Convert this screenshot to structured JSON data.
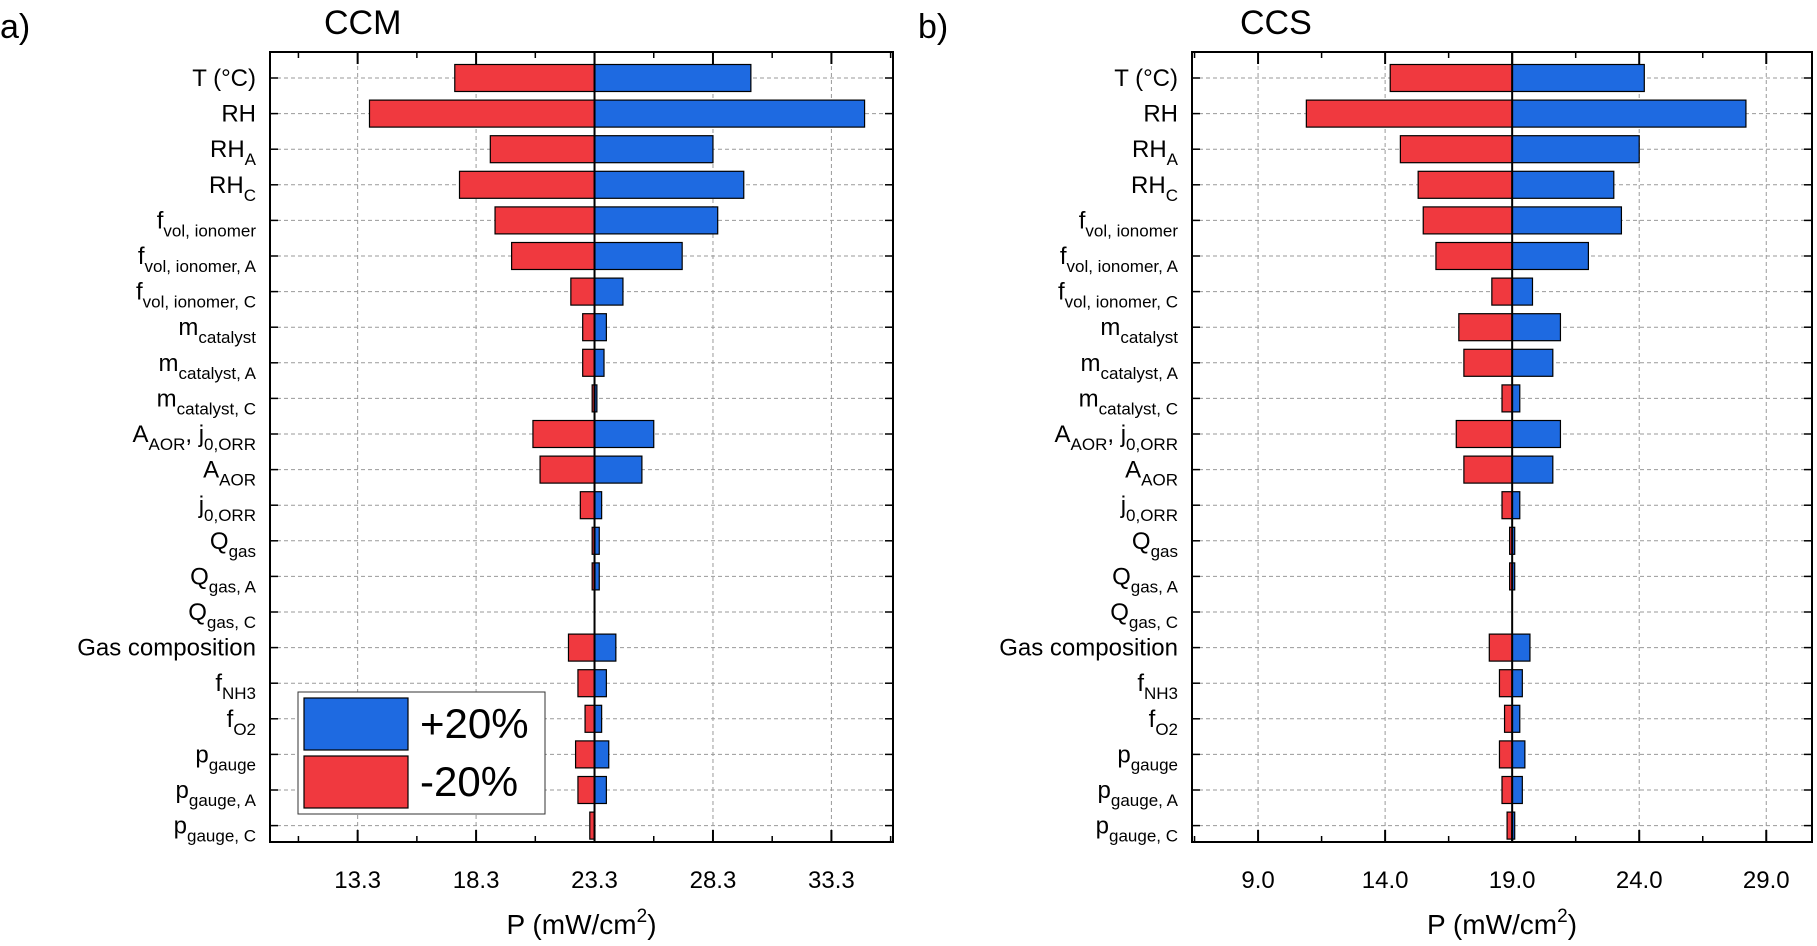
{
  "colors": {
    "increase": "#1e6ae1",
    "decrease": "#f0393f",
    "grid": "#9a9a9a",
    "axis": "#000000"
  },
  "legend": {
    "location": "lower-left of panel a",
    "entries": [
      {
        "label": "+20%",
        "color": "#1e6ae1"
      },
      {
        "label": "-20%",
        "color": "#f0393f"
      }
    ]
  },
  "parameters": [
    {
      "base": "T (°C)"
    },
    {
      "base": "RH"
    },
    {
      "base": "RH",
      "sub": "A"
    },
    {
      "base": "RH",
      "sub": "C"
    },
    {
      "base": "f",
      "sub": "vol, ionomer"
    },
    {
      "base": "f",
      "sub": "vol, ionomer, A"
    },
    {
      "base": "f",
      "sub": "vol, ionomer, C"
    },
    {
      "base": "m",
      "sub": "catalyst"
    },
    {
      "base": "m",
      "sub": "catalyst, A"
    },
    {
      "base": "m",
      "sub": "catalyst, C"
    },
    {
      "base": "A",
      "sub": "AOR",
      "mid": ", j",
      "sub2": "0,ORR"
    },
    {
      "base": "A",
      "sub": "AOR"
    },
    {
      "base": "j",
      "sub": "0,ORR"
    },
    {
      "base": "Q",
      "sub": "gas"
    },
    {
      "base": "Q",
      "sub": "gas, A"
    },
    {
      "base": "Q",
      "sub": "gas, C"
    },
    {
      "base": "Gas composition"
    },
    {
      "base": "f",
      "sub": "NH3"
    },
    {
      "base": "f",
      "sub": "O2"
    },
    {
      "base": "p",
      "sub": "gauge"
    },
    {
      "base": "p",
      "sub": "gauge, A"
    },
    {
      "base": "p",
      "sub": "gauge, C"
    }
  ],
  "chart_data": [
    {
      "type": "bar",
      "orientation": "horizontal tornado",
      "panel_label": "a)",
      "title": "CCM",
      "xlabel": "P (mW/cm",
      "xlabel_sup": "2",
      "xlabel_close": ")",
      "baseline": 23.3,
      "xlim": [
        9.6,
        35.9
      ],
      "xticks": [
        13.3,
        18.3,
        23.3,
        28.3,
        33.3
      ],
      "xtick_labels": [
        "13.3",
        "18.3",
        "23.3",
        "28.3",
        "33.3"
      ],
      "grid": true,
      "series": [
        {
          "name": "+20%",
          "values": [
            29.9,
            34.7,
            28.3,
            29.6,
            28.5,
            27.0,
            24.5,
            23.8,
            23.7,
            23.4,
            25.8,
            25.3,
            23.6,
            23.5,
            23.5,
            23.3,
            24.2,
            23.8,
            23.6,
            23.9,
            23.8,
            23.3
          ]
        },
        {
          "name": "-20%",
          "values": [
            17.4,
            13.8,
            18.9,
            17.6,
            19.1,
            19.8,
            22.3,
            22.8,
            22.8,
            23.2,
            20.7,
            21.0,
            22.7,
            23.2,
            23.2,
            23.3,
            22.2,
            22.6,
            22.9,
            22.5,
            22.6,
            23.1
          ]
        }
      ]
    },
    {
      "type": "bar",
      "orientation": "horizontal tornado",
      "panel_label": "b)",
      "title": "CCS",
      "xlabel": "P (mW/cm",
      "xlabel_sup": "2",
      "xlabel_close": ")",
      "baseline": 19.0,
      "xlim": [
        6.4,
        30.8
      ],
      "xticks": [
        9.0,
        14.0,
        19.0,
        24.0,
        29.0
      ],
      "xtick_labels": [
        "9.0",
        "14.0",
        "19.0",
        "24.0",
        "29.0"
      ],
      "grid": true,
      "series": [
        {
          "name": "+20%",
          "values": [
            24.2,
            28.2,
            24.0,
            23.0,
            23.3,
            22.0,
            19.8,
            20.9,
            20.6,
            19.3,
            20.9,
            20.6,
            19.3,
            19.1,
            19.1,
            19.0,
            19.7,
            19.4,
            19.3,
            19.5,
            19.4,
            19.1
          ]
        },
        {
          "name": "-20%",
          "values": [
            14.2,
            10.9,
            14.6,
            15.3,
            15.5,
            16.0,
            18.2,
            16.9,
            17.1,
            18.6,
            16.8,
            17.1,
            18.6,
            18.9,
            18.9,
            19.0,
            18.1,
            18.5,
            18.7,
            18.5,
            18.6,
            18.8
          ]
        }
      ]
    }
  ]
}
